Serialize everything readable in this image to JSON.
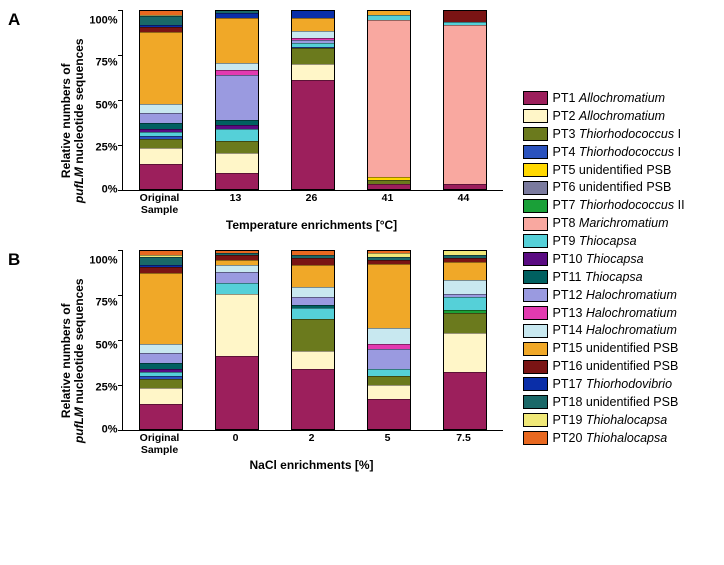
{
  "colors": {
    "PT1": "#9c1f5c",
    "PT2": "#fff6c8",
    "PT3": "#6b7a1d",
    "PT4": "#2a52be",
    "PT5": "#ffd800",
    "PT6": "#7a7a9e",
    "PT7": "#1aa038",
    "PT8": "#f9a8a0",
    "PT9": "#55d0d8",
    "PT10": "#5a0b82",
    "PT11": "#006060",
    "PT12": "#9a9ae0",
    "PT13": "#e23ab0",
    "PT14": "#c8e8f0",
    "PT15": "#f0a828",
    "PT16": "#7a1414",
    "PT17": "#0a2ea8",
    "PT18": "#1a6868",
    "PT19": "#f0e878",
    "PT20": "#e86820"
  },
  "legend": [
    {
      "key": "PT1",
      "label": "Allochromatium",
      "italic": true
    },
    {
      "key": "PT2",
      "label": "Allochromatium",
      "italic": true
    },
    {
      "key": "PT3",
      "label": "Thiorhodococcus",
      "italic": true,
      "suffix": " I"
    },
    {
      "key": "PT4",
      "label": "Thiorhodococcus",
      "italic": true,
      "suffix": " I"
    },
    {
      "key": "PT5",
      "label": "unidentified PSB",
      "italic": false
    },
    {
      "key": "PT6",
      "label": "unidentified PSB",
      "italic": false
    },
    {
      "key": "PT7",
      "label": "Thiorhodococcus",
      "italic": true,
      "suffix": " II"
    },
    {
      "key": "PT8",
      "label": "Marichromatium",
      "italic": true
    },
    {
      "key": "PT9",
      "label": "Thiocapsa",
      "italic": true
    },
    {
      "key": "PT10",
      "label": "Thiocapsa",
      "italic": true
    },
    {
      "key": "PT11",
      "label": "Thiocapsa",
      "italic": true
    },
    {
      "key": "PT12",
      "label": "Halochromatium",
      "italic": true
    },
    {
      "key": "PT13",
      "label": "Halochromatium",
      "italic": true
    },
    {
      "key": "PT14",
      "label": "Halochromatium",
      "italic": true
    },
    {
      "key": "PT15",
      "label": "unidentified PSB",
      "italic": false
    },
    {
      "key": "PT16",
      "label": "unidentified PSB",
      "italic": false
    },
    {
      "key": "PT17",
      "label": "Thiorhodovibrio",
      "italic": true
    },
    {
      "key": "PT18",
      "label": "unidentified PSB",
      "italic": false
    },
    {
      "key": "PT19",
      "label": "Thiohalocapsa",
      "italic": true
    },
    {
      "key": "PT20",
      "label": "Thiohalocapsa",
      "italic": true
    }
  ],
  "panelA": {
    "label": "A",
    "ylabel_line1": "Relative numbers of",
    "ylabel_line2_italic": "pufLM",
    "ylabel_line2_rest": " nucleotide sequences",
    "yticks": [
      "0%",
      "25%",
      "50%",
      "75%",
      "100%"
    ],
    "xaxis_title": "Temperature enrichments [°C]",
    "categories": [
      "Original\nSample",
      "13",
      "26",
      "41",
      "44"
    ],
    "bars": [
      {
        "PT1": 14,
        "PT2": 9,
        "PT3": 5,
        "PT12": 6,
        "PT14": 5,
        "PT15": 40,
        "PT16": 3,
        "PT9": 2,
        "PT11": 3,
        "PT18": 5,
        "PT10": 2,
        "PT20": 2,
        "PT4": 2,
        "PT17": 1,
        "PT19": 1
      },
      {
        "PT1": 9,
        "PT2": 11,
        "PT12": 25,
        "PT9": 7,
        "PT14": 4,
        "PT15": 25,
        "PT3": 7,
        "PT11": 3,
        "PT13": 3,
        "PT18": 1,
        "PT17": 3,
        "PT10": 2
      },
      {
        "PT1": 61,
        "PT2": 9,
        "PT14": 4,
        "PT15": 7,
        "PT3": 9,
        "PT12": 2,
        "PT9": 2,
        "PT17": 4,
        "PT13": 1,
        "PT4": 1
      },
      {
        "PT15": 2,
        "PT1": 3,
        "PT5": 2,
        "PT3": 2,
        "PT8": 88,
        "PT9": 3
      },
      {
        "PT1": 3,
        "PT9": 2,
        "PT8": 89,
        "PT16": 6
      }
    ]
  },
  "panelB": {
    "label": "B",
    "ylabel_line1": "Relative numbers of",
    "ylabel_line2_italic": "pufLM",
    "ylabel_line2_rest": " nucleotide sequences",
    "yticks": [
      "0%",
      "25%",
      "50%",
      "75%",
      "100%"
    ],
    "xaxis_title": "NaCl enrichments [%]",
    "categories": [
      "Original\nSample",
      "0",
      "2",
      "5",
      "7.5"
    ],
    "bars": [
      {
        "PT1": 14,
        "PT2": 9,
        "PT3": 5,
        "PT12": 6,
        "PT14": 5,
        "PT15": 40,
        "PT16": 3,
        "PT9": 2,
        "PT11": 3,
        "PT18": 5,
        "PT10": 2,
        "PT20": 2,
        "PT4": 2,
        "PT17": 1,
        "PT19": 1
      },
      {
        "PT1": 41,
        "PT2": 35,
        "PT9": 6,
        "PT14": 4,
        "PT12": 6,
        "PT16": 3,
        "PT15": 3,
        "PT18": 1,
        "PT20": 1
      },
      {
        "PT1": 34,
        "PT2": 10,
        "PT3": 18,
        "PT9": 6,
        "PT12": 4,
        "PT14": 6,
        "PT15": 12,
        "PT16": 4,
        "PT18": 2,
        "PT11": 2,
        "PT20": 2
      },
      {
        "PT1": 17,
        "PT2": 8,
        "PT12": 11,
        "PT14": 9,
        "PT3": 5,
        "PT15": 36,
        "PT9": 4,
        "PT16": 2,
        "PT13": 3,
        "PT18": 2,
        "PT19": 2,
        "PT20": 1
      },
      {
        "PT1": 32,
        "PT2": 22,
        "PT14": 8,
        "PT3": 11,
        "PT15": 10,
        "PT9": 7,
        "PT16": 2,
        "PT18": 2,
        "PT7": 2,
        "PT12": 2,
        "PT19": 2
      }
    ]
  }
}
